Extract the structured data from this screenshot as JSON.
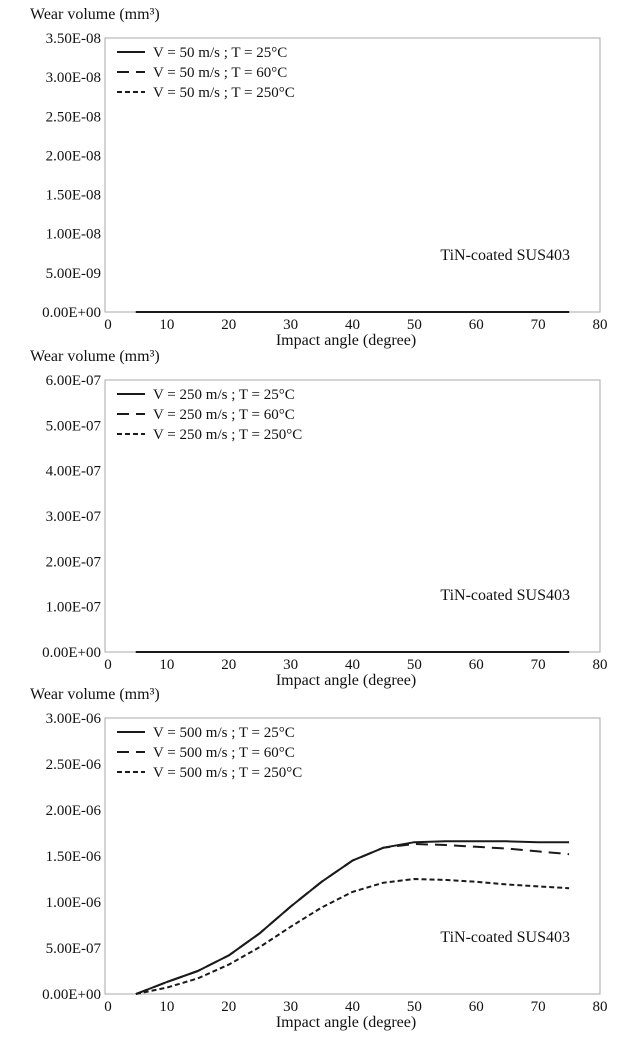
{
  "chart_data": [
    {
      "type": "line",
      "ylabel": "Wear volume (mm³)",
      "xlabel": "Impact angle (degree)",
      "annotation": "TiN-coated SUS403",
      "xlim": [
        0,
        80
      ],
      "ylim": [
        0,
        3.5e-08
      ],
      "x_ticks": [
        "0",
        "10",
        "20",
        "30",
        "40",
        "50",
        "60",
        "70",
        "80"
      ],
      "y_ticks": [
        "0.00E+00",
        "5.00E-09",
        "1.00E-08",
        "1.50E-08",
        "2.00E-08",
        "2.50E-08",
        "3.00E-08",
        "3.50E-08"
      ],
      "legend_position": "top-left",
      "grid": false,
      "series": [
        {
          "name": "V = 50 m/s ; T = 25°C",
          "style": "solid",
          "x": [
            5,
            75
          ],
          "y": [
            0,
            0
          ]
        },
        {
          "name": "V = 50 m/s ; T = 60°C",
          "style": "dashed",
          "x": [
            5,
            75
          ],
          "y": [
            0,
            0
          ]
        },
        {
          "name": "V = 50 m/s ; T = 250°C",
          "style": "dotted",
          "x": [
            5,
            75
          ],
          "y": [
            0,
            0
          ]
        }
      ]
    },
    {
      "type": "line",
      "ylabel": "Wear volume (mm³)",
      "xlabel": "Impact angle (degree)",
      "annotation": "TiN-coated SUS403",
      "xlim": [
        0,
        80
      ],
      "ylim": [
        0,
        6e-07
      ],
      "x_ticks": [
        "0",
        "10",
        "20",
        "30",
        "40",
        "50",
        "60",
        "70",
        "80"
      ],
      "y_ticks": [
        "0.00E+00",
        "1.00E-07",
        "2.00E-07",
        "3.00E-07",
        "4.00E-07",
        "5.00E-07",
        "6.00E-07"
      ],
      "legend_position": "top-left",
      "grid": false,
      "series": [
        {
          "name": "V = 250 m/s ; T = 25°C",
          "style": "solid",
          "x": [
            5,
            75
          ],
          "y": [
            0,
            0
          ]
        },
        {
          "name": "V = 250 m/s ; T = 60°C",
          "style": "dashed",
          "x": [
            5,
            75
          ],
          "y": [
            0,
            0
          ]
        },
        {
          "name": "V = 250 m/s ; T = 250°C",
          "style": "dotted",
          "x": [
            5,
            75
          ],
          "y": [
            0,
            0
          ]
        }
      ]
    },
    {
      "type": "line",
      "ylabel": "Wear volume (mm³)",
      "xlabel": "Impact angle (degree)",
      "annotation": "TiN-coated SUS403",
      "xlim": [
        0,
        80
      ],
      "ylim": [
        0,
        3e-06
      ],
      "x_ticks": [
        "0",
        "10",
        "20",
        "30",
        "40",
        "50",
        "60",
        "70",
        "80"
      ],
      "y_ticks": [
        "0.00E+00",
        "5.00E-07",
        "1.00E-06",
        "1.50E-06",
        "2.00E-06",
        "2.50E-06",
        "3.00E-06"
      ],
      "legend_position": "top-left",
      "grid": false,
      "series": [
        {
          "name": "V = 500 m/s ; T = 25°C",
          "style": "solid",
          "x": [
            5,
            10,
            15,
            20,
            25,
            30,
            35,
            40,
            45,
            50,
            55,
            60,
            65,
            70,
            75
          ],
          "y": [
            0,
            1.3e-07,
            2.5e-07,
            4.2e-07,
            6.6e-07,
            9.5e-07,
            1.22e-06,
            1.45e-06,
            1.59e-06,
            1.65e-06,
            1.66e-06,
            1.66e-06,
            1.66e-06,
            1.65e-06,
            1.65e-06
          ]
        },
        {
          "name": "V = 500 m/s ; T = 60°C",
          "style": "dashed",
          "x": [
            5,
            10,
            15,
            20,
            25,
            30,
            35,
            40,
            45,
            50,
            55,
            60,
            65,
            70,
            75
          ],
          "y": [
            0,
            1.3e-07,
            2.5e-07,
            4.2e-07,
            6.6e-07,
            9.5e-07,
            1.22e-06,
            1.45e-06,
            1.59e-06,
            1.63e-06,
            1.62e-06,
            1.6e-06,
            1.58e-06,
            1.55e-06,
            1.52e-06
          ]
        },
        {
          "name": "V = 500 m/s ; T = 250°C",
          "style": "dotted",
          "x": [
            5,
            10,
            15,
            20,
            25,
            30,
            35,
            40,
            45,
            50,
            55,
            60,
            65,
            70,
            75
          ],
          "y": [
            0,
            7e-08,
            1.7e-07,
            3.2e-07,
            5.1e-07,
            7.3e-07,
            9.4e-07,
            1.11e-06,
            1.21e-06,
            1.25e-06,
            1.24e-06,
            1.22e-06,
            1.19e-06,
            1.17e-06,
            1.15e-06
          ]
        }
      ]
    }
  ],
  "colors": {
    "line": "#1a1a1a",
    "frame": "#a8a8a8",
    "background": "#ffffff"
  }
}
